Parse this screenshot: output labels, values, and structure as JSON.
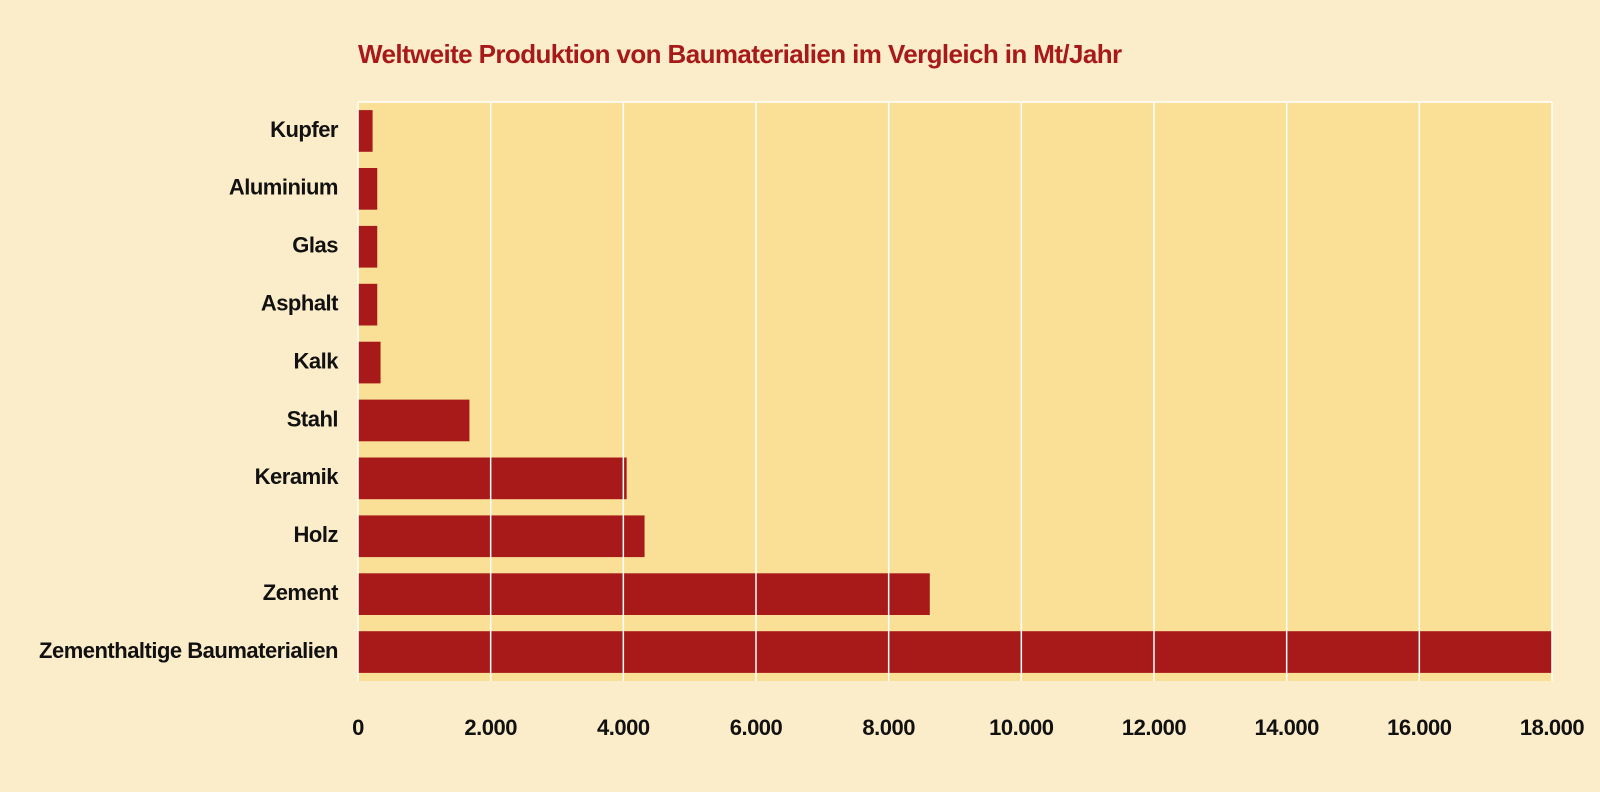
{
  "chart_data": {
    "type": "barh",
    "title": "Weltweite Produktion von Baumaterialien im Vergleich in Mt/Jahr",
    "categories": [
      "Kupfer",
      "Aluminium",
      "Glas",
      "Asphalt",
      "Kalk",
      "Stahl",
      "Keramik",
      "Holz",
      "Zement",
      "Zementhaltige Baumaterialien"
    ],
    "values": [
      220,
      290,
      290,
      290,
      340,
      1680,
      4050,
      4320,
      8620,
      18000
    ],
    "color": "#a81a1a",
    "xlim": [
      0,
      18000
    ],
    "xticks": [
      0,
      {
        "value": 2000,
        "label": "2.000"
      },
      {
        "value": 4000,
        "label": "4.000"
      },
      {
        "value": 6000,
        "label": "6.000"
      },
      {
        "value": 8000,
        "label": "8.000"
      },
      {
        "value": 10000,
        "label": "10.000"
      },
      {
        "value": 12000,
        "label": "12.000"
      },
      {
        "value": 14000,
        "label": "14.000"
      },
      {
        "value": 16000,
        "label": "16.000"
      },
      {
        "value": 18000,
        "label": "18.000"
      }
    ],
    "grid": true
  }
}
